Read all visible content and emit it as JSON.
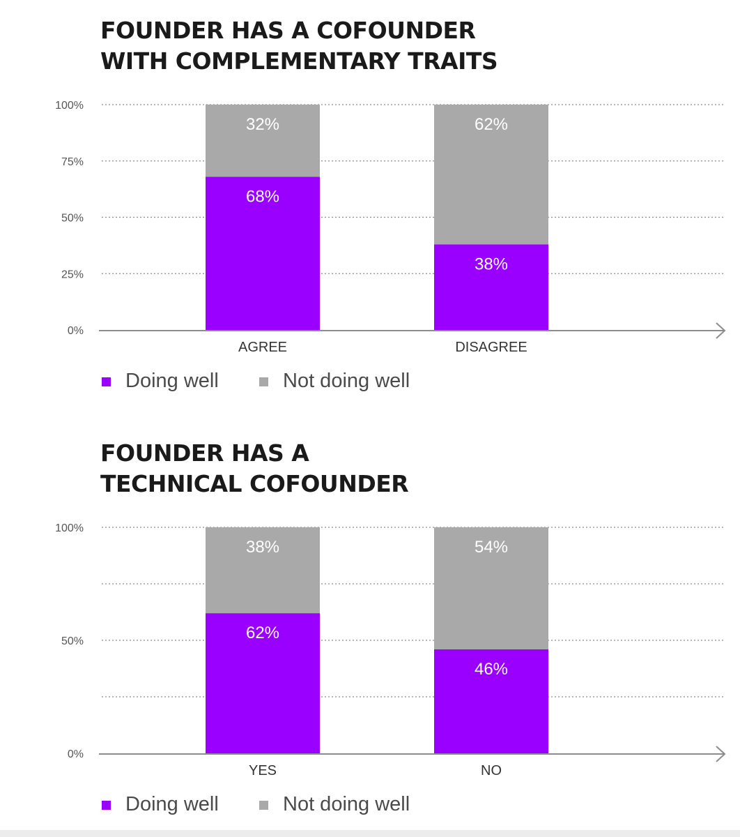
{
  "colors": {
    "doing_well": "#9a00ff",
    "not_doing_well": "#a9a9a9",
    "axis": "#8c8c8c",
    "grid": "#8c8c8c",
    "tick_text": "#555555",
    "label_text": "#ffffff"
  },
  "chart_data": [
    {
      "type": "bar",
      "stacked": true,
      "title_lines": [
        "FOUNDER HAS A COFOUNDER",
        "WITH COMPLEMENTARY TRAITS"
      ],
      "categories": [
        "AGREE",
        "DISAGREE"
      ],
      "series": [
        {
          "name": "Doing well",
          "values": [
            68,
            38
          ],
          "labels": [
            "68%",
            "38%"
          ]
        },
        {
          "name": "Not doing well",
          "values": [
            32,
            62
          ],
          "labels": [
            "32%",
            "62%"
          ]
        }
      ],
      "yticks": [
        0,
        25,
        50,
        75,
        100
      ],
      "ytick_labels": [
        "0%",
        "25%",
        "50%",
        "75%",
        "100%"
      ],
      "gridlines": [
        25,
        50,
        75,
        100
      ],
      "ylim": [
        0,
        100
      ],
      "legend": [
        "Doing well",
        "Not doing well"
      ]
    },
    {
      "type": "bar",
      "stacked": true,
      "title_lines": [
        "FOUNDER HAS A",
        "TECHNICAL COFOUNDER"
      ],
      "categories": [
        "YES",
        "NO"
      ],
      "series": [
        {
          "name": "Doing well",
          "values": [
            62,
            46
          ],
          "labels": [
            "62%",
            "46%"
          ]
        },
        {
          "name": "Not doing well",
          "values": [
            38,
            54
          ],
          "labels": [
            "38%",
            "54%"
          ]
        }
      ],
      "yticks": [
        0,
        50,
        100
      ],
      "ytick_labels": [
        "0%",
        "50%",
        "100%"
      ],
      "gridlines": [
        25,
        50,
        75,
        100
      ],
      "ylim": [
        0,
        100
      ],
      "legend": [
        "Doing well",
        "Not doing well"
      ]
    }
  ]
}
